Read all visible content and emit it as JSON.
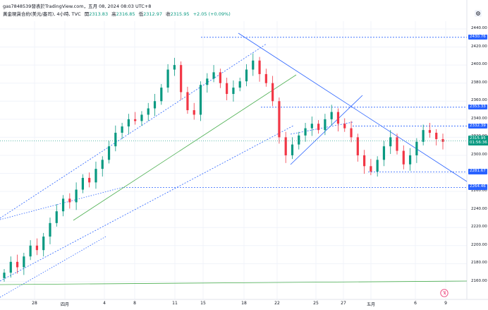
{
  "header": {
    "author_line": "gas7848539發表於TradingView.com，五月 08, 2024 08:03 UTC+8",
    "symbol_line": "黃金現貨合約(美元/盎司), 4小時, TVC",
    "ohlc": {
      "open_label": "開",
      "open": "2313.83",
      "high_label": "高",
      "high": "2316.85",
      "low_label": "低",
      "low": "2312.97",
      "close_label": "收",
      "close": "2315.95",
      "change": "+2.05 (+0.09%)"
    }
  },
  "colors": {
    "up": "#089981",
    "down": "#f23645",
    "trend_blue": "#2962ff",
    "trend_green": "#4caf50"
  },
  "icons": [
    "settings-icon",
    "tradingview-logo-icon"
  ],
  "y_ticks": [
    "2440.00",
    "2420.00",
    "2400.00",
    "2380.00",
    "2360.00",
    "2340.00",
    "2320.00",
    "2300.00",
    "2280.00",
    "2260.00",
    "2240.00",
    "2220.00",
    "2200.00",
    "2180.00",
    "2160.00"
  ],
  "x_ticks": [
    "28",
    "四月",
    "4",
    "8",
    "11",
    "15",
    "18",
    "22",
    "25",
    "27",
    "五月",
    "6",
    "9"
  ],
  "price_tags": [
    "2430.76",
    "2353.33",
    "2332.39",
    "2281.67",
    "2264.46"
  ],
  "last_price": {
    "price": "2315.95",
    "countdown": "01:56:36"
  },
  "chart_data": {
    "type": "candlestick",
    "title": "黃金現貨合約(美元/盎司), 4小時, TVC",
    "ylim": [
      2150,
      2450
    ],
    "yaxis_position": "right",
    "horizontal_levels": [
      2430.76,
      2353.33,
      2332.39,
      2281.67,
      2264.46
    ],
    "last_close": 2315.95,
    "x_categories": [
      "28",
      "四月",
      "4",
      "8",
      "11",
      "15",
      "18",
      "22",
      "25",
      "27",
      "五月",
      "6",
      "9"
    ],
    "candles_close_approx": [
      2170,
      2182,
      2176,
      2188,
      2200,
      2195,
      2210,
      2225,
      2238,
      2252,
      2248,
      2262,
      2275,
      2270,
      2285,
      2295,
      2310,
      2325,
      2332,
      2340,
      2338,
      2345,
      2352,
      2360,
      2375,
      2395,
      2400,
      2370,
      2350,
      2345,
      2378,
      2385,
      2392,
      2380,
      2368,
      2375,
      2382,
      2395,
      2405,
      2390,
      2380,
      2360,
      2320,
      2300,
      2312,
      2322,
      2330,
      2335,
      2328,
      2340,
      2348,
      2335,
      2330,
      2320,
      2300,
      2288,
      2282,
      2295,
      2310,
      2320,
      2305,
      2290,
      2300,
      2315,
      2328,
      2325,
      2318,
      2315
    ]
  }
}
